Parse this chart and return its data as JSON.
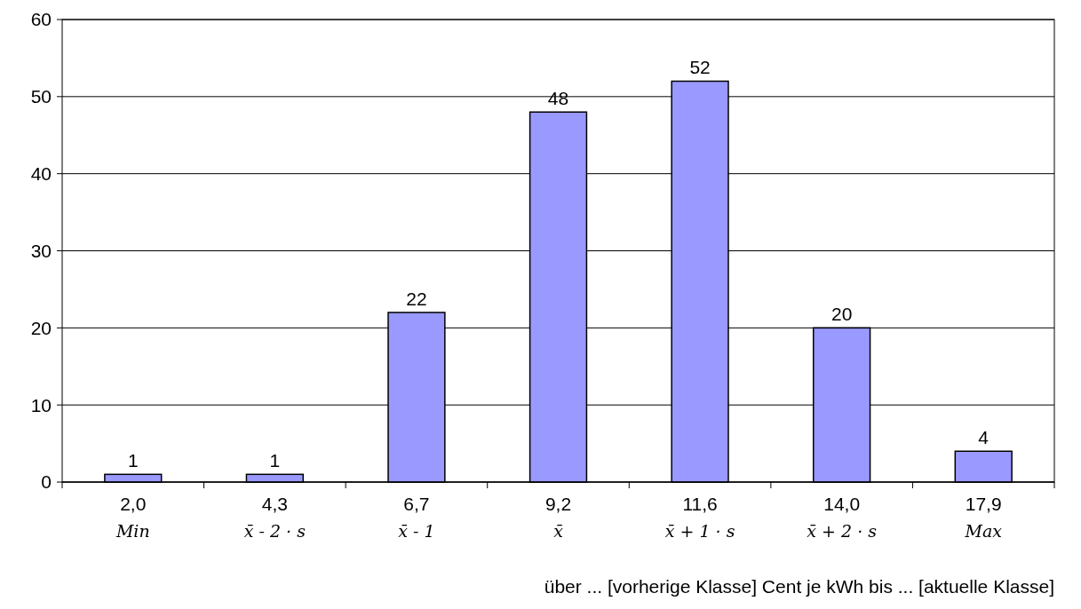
{
  "chart_data": {
    "type": "bar",
    "categories": [
      "2,0\nMin",
      "4,3\nx̄ - 2 · s",
      "6,7\nx̄ - 1",
      "9,2\nx̄",
      "11,6\nx̄ + 1 · s",
      "14,0\nx̄ + 2 · s",
      "17,9\nMax"
    ],
    "values": [
      1,
      1,
      22,
      48,
      52,
      20,
      4
    ],
    "color": "#9999ff",
    "ylim": [
      0,
      60
    ],
    "yticks": [
      0,
      10,
      20,
      30,
      40,
      50,
      60
    ],
    "grid": "y",
    "data_labels": true,
    "xlabel": "über ... [vorherige Klasse] Cent je kWh  bis ... [aktuelle Klasse]"
  }
}
